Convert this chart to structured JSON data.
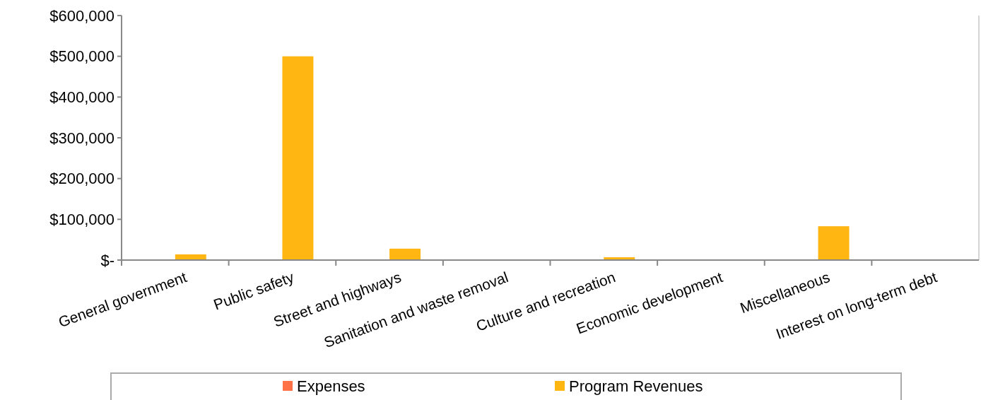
{
  "chart_data": {
    "type": "bar",
    "categories": [
      "General government",
      "Public safety",
      "Street and highways",
      "Sanitation and waste removal",
      "Culture and recreation",
      "Economic development",
      "Miscellaneous",
      "Interest on long-term debt"
    ],
    "series": [
      {
        "name": "Expenses",
        "color": "#ff7147",
        "values": [
          null,
          null,
          null,
          null,
          null,
          null,
          null,
          null
        ]
      },
      {
        "name": "Program Revenues",
        "color": "#ffb612",
        "values": [
          14000,
          500000,
          28000,
          0,
          7000,
          0,
          83000,
          0
        ]
      }
    ],
    "ylim": [
      0,
      600000
    ],
    "yticks": [
      {
        "value": 0,
        "label": "$-"
      },
      {
        "value": 100000,
        "label": "$100,000"
      },
      {
        "value": 200000,
        "label": "$200,000"
      },
      {
        "value": 300000,
        "label": "$300,000"
      },
      {
        "value": 400000,
        "label": "$400,000"
      },
      {
        "value": 500000,
        "label": "$500,000"
      },
      {
        "value": 600000,
        "label": "$600,000"
      }
    ],
    "grid": false,
    "legend": "bottom"
  }
}
